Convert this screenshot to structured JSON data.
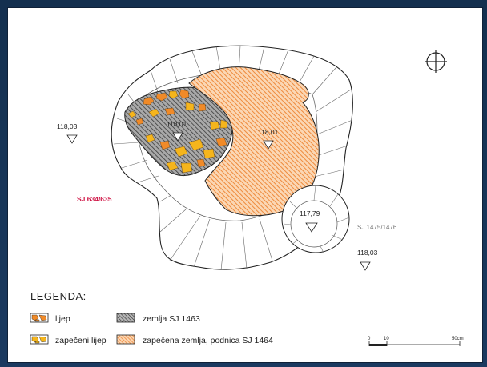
{
  "plan": {
    "elevations": [
      {
        "id": "elev-west",
        "value": "118,03"
      },
      {
        "id": "elev-grey-area",
        "value": "118,01"
      },
      {
        "id": "elev-orange-area",
        "value": "118,01"
      },
      {
        "id": "elev-circle",
        "value": "117,79"
      },
      {
        "id": "elev-southeast",
        "value": "118,03"
      }
    ],
    "label_sj_634": "SJ 634/635",
    "label_sj_1475": "SJ 1475/1476"
  },
  "legend": {
    "title": "LEGENDA:",
    "items": [
      {
        "label": "lijep"
      },
      {
        "label": "zemlja SJ 1463"
      },
      {
        "label": "zapečeni lijep"
      },
      {
        "label": "zapečena zemlja, podnica SJ 1464"
      }
    ]
  },
  "scale_bar": {
    "ticks": [
      "0",
      "10",
      "50cm"
    ]
  },
  "colors": {
    "lijep": "#f08a28",
    "zapeceni_lijep": "#f5b51c",
    "zemlja": "#8a8a8a",
    "zapecena_zemlja": "#f39a55",
    "label_red": "#d01848"
  },
  "north_symbol": "north-cross-circle-icon"
}
